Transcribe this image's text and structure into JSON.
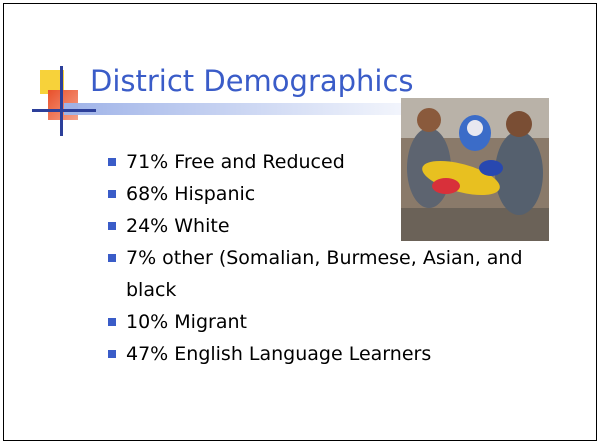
{
  "title": "District Demographics",
  "bullets": [
    "71% Free and Reduced",
    "68% Hispanic",
    "24% White",
    "7% other (Somalian, Burmese, Asian, and black",
    "10% Migrant",
    "47% English Language Learners"
  ]
}
